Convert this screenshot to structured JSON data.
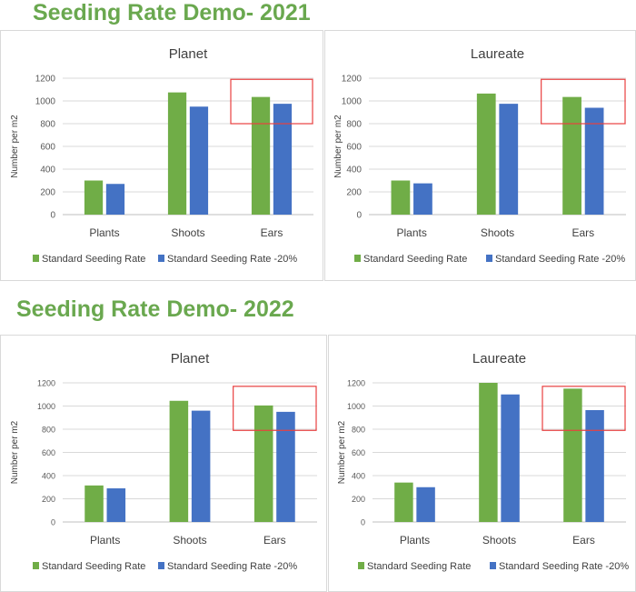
{
  "sections": [
    {
      "heading": "Seeding Rate Demo- 2021"
    },
    {
      "heading": "Seeding Rate Demo- 2022"
    }
  ],
  "colors": {
    "green": "#70ad47",
    "blue": "#4472c4",
    "highlight": "#e84040",
    "heading": "#6aa84f"
  },
  "chart_data": [
    {
      "type": "bar",
      "title": "Planet",
      "section": "2021",
      "categories": [
        "Plants",
        "Shoots",
        "Ears"
      ],
      "ylabel": "Number per m2",
      "ylim": [
        0,
        1200
      ],
      "yticks": [
        0,
        200,
        400,
        600,
        800,
        1000,
        1200
      ],
      "grid": true,
      "legend": "bottom",
      "series": [
        {
          "name": "Standard Seeding Rate",
          "values": [
            300,
            1075,
            1035
          ]
        },
        {
          "name": "Standard Seeding Rate -20%",
          "values": [
            270,
            950,
            975
          ]
        }
      ],
      "highlight": {
        "category": "Ears",
        "range": [
          800,
          1190
        ]
      }
    },
    {
      "type": "bar",
      "title": "Laureate",
      "section": "2021",
      "categories": [
        "Plants",
        "Shoots",
        "Ears"
      ],
      "ylabel": "Number per m2",
      "ylim": [
        0,
        1200
      ],
      "yticks": [
        0,
        200,
        400,
        600,
        800,
        1000,
        1200
      ],
      "grid": true,
      "legend": "bottom",
      "series": [
        {
          "name": "Standard Seeding Rate",
          "values": [
            300,
            1065,
            1035
          ]
        },
        {
          "name": "Standard Seeding Rate -20%",
          "values": [
            275,
            975,
            940
          ]
        }
      ],
      "highlight": {
        "category": "Ears",
        "range": [
          800,
          1190
        ]
      }
    },
    {
      "type": "bar",
      "title": "Planet",
      "section": "2022",
      "categories": [
        "Plants",
        "Shoots",
        "Ears"
      ],
      "ylabel": "Number per m2",
      "ylim": [
        0,
        1200
      ],
      "yticks": [
        0,
        200,
        400,
        600,
        800,
        1000,
        1200
      ],
      "grid": true,
      "legend": "bottom",
      "series": [
        {
          "name": "Standard Seeding Rate",
          "values": [
            315,
            1045,
            1005
          ]
        },
        {
          "name": "Standard Seeding Rate -20%",
          "values": [
            290,
            960,
            950
          ]
        }
      ],
      "highlight": {
        "category": "Ears",
        "range": [
          790,
          1170
        ]
      }
    },
    {
      "type": "bar",
      "title": "Laureate",
      "section": "2022",
      "categories": [
        "Plants",
        "Shoots",
        "Ears"
      ],
      "ylabel": "Number per m2",
      "ylim": [
        0,
        1200
      ],
      "yticks": [
        0,
        200,
        400,
        600,
        800,
        1000,
        1200
      ],
      "grid": true,
      "legend": "bottom",
      "series": [
        {
          "name": "Standard Seeding Rate",
          "values": [
            340,
            1200,
            1150
          ]
        },
        {
          "name": "Standard Seeding Rate -20%",
          "values": [
            300,
            1100,
            965
          ]
        }
      ],
      "highlight": {
        "category": "Ears",
        "range": [
          790,
          1170
        ]
      }
    }
  ]
}
